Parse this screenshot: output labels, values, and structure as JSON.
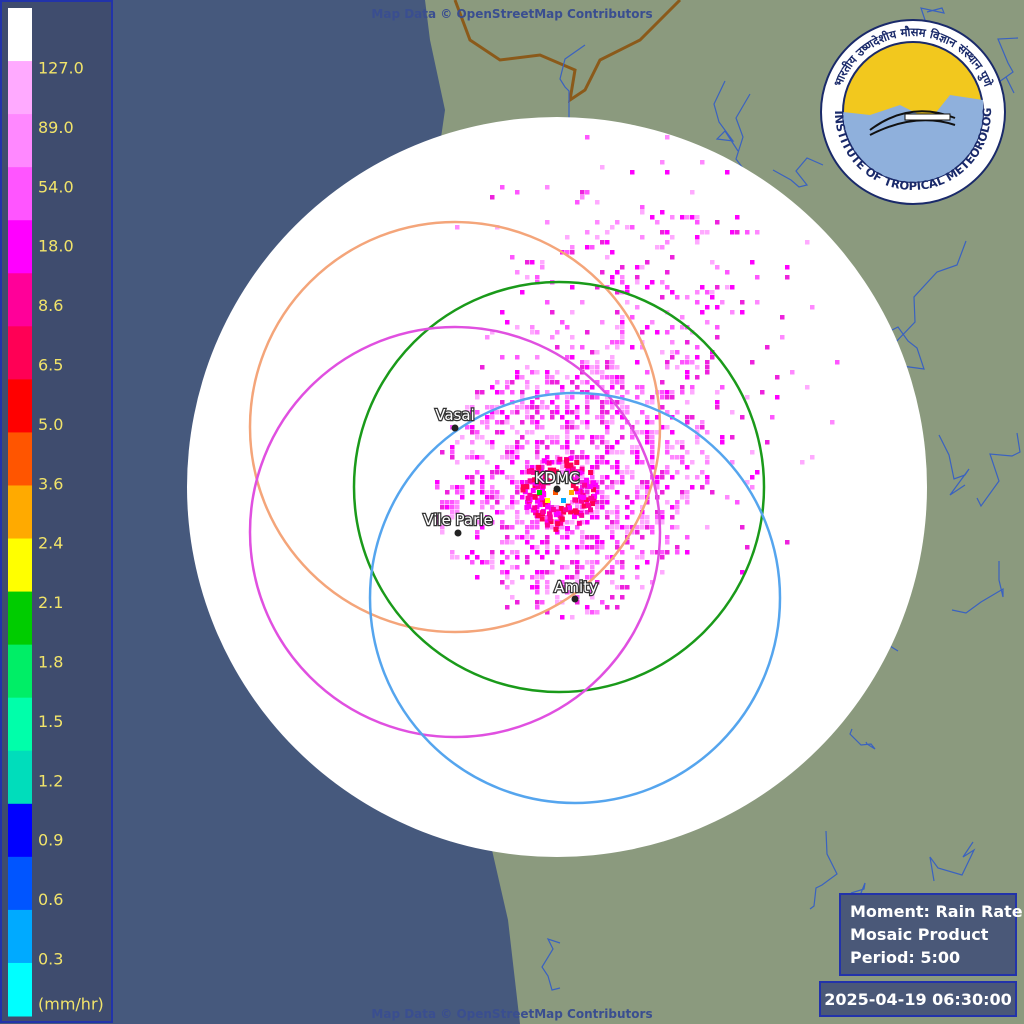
{
  "map": {
    "attribution": "Map Data © OpenStreetMap Contributors",
    "stations": [
      {
        "label": "Vasai"
      },
      {
        "label": "KDMC"
      },
      {
        "label": "Vile Parle"
      },
      {
        "label": "Amity"
      }
    ]
  },
  "legend": {
    "labels": [
      "127.0",
      "89.0",
      "54.0",
      "18.0",
      "8.6",
      "6.5",
      "5.0",
      "3.6",
      "2.4",
      "2.1",
      "1.8",
      "1.5",
      "1.2",
      "0.9",
      "0.6",
      "0.3"
    ],
    "unit": "(mm/hr)"
  },
  "logo": {
    "english": "INDIAN INSTITUTE OF TROPICAL METEOROLOGY PUNE",
    "hindi": "भारतीय उष्णदेशीय मौसम विज्ञान संस्थान पुणे"
  },
  "info": {
    "lines": [
      "Moment: Rain Rate",
      "Mosaic Product",
      "Period: 5:00"
    ],
    "timestamp": "2025-04-19 06:30:00"
  }
}
